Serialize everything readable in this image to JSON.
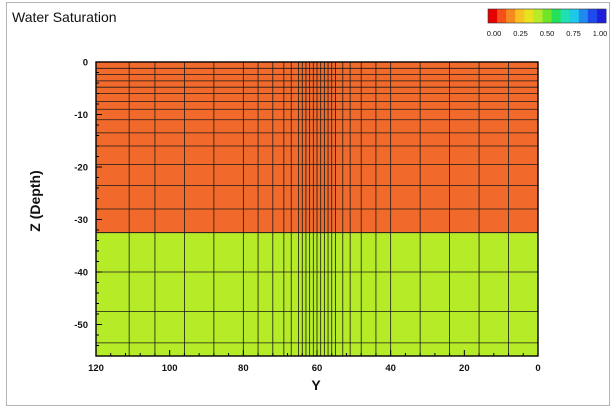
{
  "chart_data": {
    "type": "heatmap",
    "title": "Water Saturation",
    "xlabel": "Y",
    "ylabel": "Z (Depth)",
    "xlim": [
      120,
      0
    ],
    "ylim": [
      -56,
      0
    ],
    "x_ticks": [
      120,
      100,
      80,
      60,
      40,
      20,
      0
    ],
    "y_ticks": [
      0,
      -10,
      -20,
      -30,
      -40,
      -50
    ],
    "grid_x_lines": [
      111,
      104,
      96,
      88,
      80,
      76,
      72,
      69,
      67,
      65,
      64,
      63,
      62,
      61,
      60,
      59,
      58,
      57,
      56,
      55,
      53,
      51,
      48,
      44,
      40,
      32,
      24,
      16,
      8
    ],
    "grid_z_lines": [
      -1.2,
      -2.4,
      -3.6,
      -4.8,
      -6,
      -7.5,
      -9,
      -11,
      -13.5,
      -16,
      -19.5,
      -23.5,
      -28,
      -40,
      -47.5,
      -53.5
    ],
    "regions": [
      {
        "z_top": 0,
        "z_bottom": -32.5,
        "saturation": 0.2,
        "color": "#f26a2b"
      },
      {
        "z_top": -32.5,
        "z_bottom": -56,
        "saturation": 0.45,
        "color": "#b6ec27"
      }
    ],
    "colorbar": {
      "ticks": [
        "0.00",
        "0.25",
        "0.50",
        "0.75",
        "1.00"
      ],
      "colors": [
        "#e60000",
        "#f5501a",
        "#f78a1f",
        "#f7c21f",
        "#e8e21f",
        "#b6ec27",
        "#6fe62a",
        "#27e05a",
        "#1fe0b0",
        "#1fc8e8",
        "#1f8af0",
        "#1f4af0",
        "#1f1fd9"
      ]
    },
    "grid": true,
    "legend_position": "top-right"
  }
}
